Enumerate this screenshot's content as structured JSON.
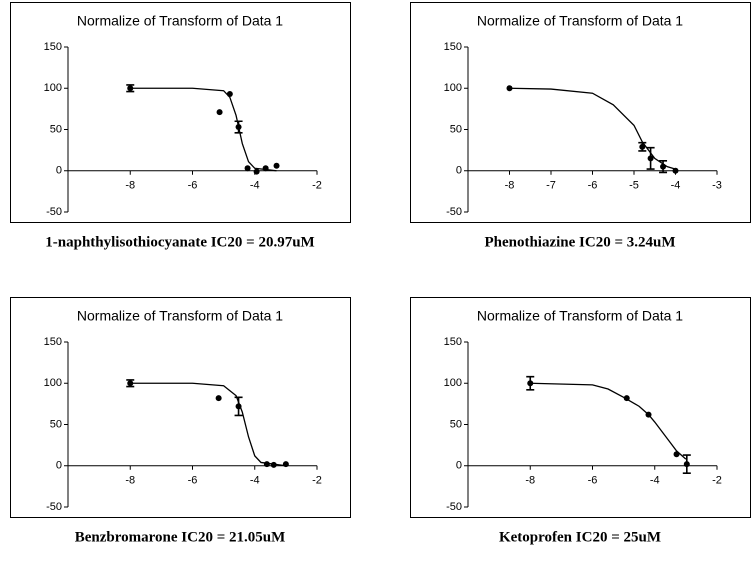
{
  "chart_data": [
    {
      "type": "scatter",
      "title": "Normalize of Transform of Data 1",
      "caption": "1-naphthylisothiocyanate IC20 = 20.97uM",
      "xlim": [
        -10,
        -2
      ],
      "xticks": [
        -8,
        -6,
        -4,
        -2
      ],
      "ylim": [
        -50,
        150
      ],
      "yticks": [
        -50,
        0,
        50,
        100,
        150
      ],
      "color": "#000000",
      "points": {
        "x": [
          -8,
          -5.13,
          -4.8,
          -4.52,
          -4.23,
          -3.94,
          -3.65,
          -3.3
        ],
        "values": [
          100,
          71,
          93,
          53,
          3,
          -1,
          3,
          6
        ],
        "errors": [
          4,
          null,
          null,
          7,
          null,
          null,
          null,
          null
        ]
      },
      "curve": {
        "x": [
          -8,
          -6,
          -5,
          -4.8,
          -4.6,
          -4.5,
          -4.4,
          -4.2,
          -4,
          -3.3
        ],
        "values": [
          100,
          100,
          97,
          89,
          67,
          50,
          33,
          11,
          3,
          0
        ]
      }
    },
    {
      "type": "scatter",
      "title": "Normalize of Transform of Data 1",
      "caption": "Phenothiazine IC20 = 3.24uM",
      "xlim": [
        -9,
        -3
      ],
      "xticks": [
        -8,
        -7,
        -6,
        -5,
        -4,
        -3
      ],
      "ylim": [
        -50,
        150
      ],
      "yticks": [
        -50,
        0,
        50,
        100,
        150
      ],
      "color": "#000000",
      "points": {
        "x": [
          -8,
          -4.8,
          -4.6,
          -4.3,
          -4
        ],
        "values": [
          100,
          29,
          15,
          5,
          0
        ],
        "errors": [
          null,
          5,
          13,
          7,
          null
        ]
      },
      "curve": {
        "x": [
          -8,
          -7,
          -6,
          -5.5,
          -5,
          -4.8,
          -4.5,
          -4.2,
          -4
        ],
        "values": [
          100,
          99,
          94,
          80,
          55,
          35,
          15,
          5,
          2
        ]
      }
    },
    {
      "type": "scatter",
      "title": "Normalize of Transform of Data 1",
      "caption": "Benzbromarone IC20 = 21.05uM",
      "xlim": [
        -10,
        -2
      ],
      "xticks": [
        -8,
        -6,
        -4,
        -2
      ],
      "ylim": [
        -50,
        150
      ],
      "yticks": [
        -50,
        0,
        50,
        100,
        150
      ],
      "color": "#000000",
      "points": {
        "x": [
          -8,
          -5.16,
          -4.52,
          -3.61,
          -3.39,
          -3.0
        ],
        "values": [
          100,
          82,
          72,
          2,
          1,
          2
        ],
        "errors": [
          4,
          null,
          11,
          null,
          null,
          null
        ]
      },
      "curve": {
        "x": [
          -8,
          -6,
          -5,
          -4.6,
          -4.4,
          -4.2,
          -4,
          -3.8,
          -3
        ],
        "values": [
          100,
          100,
          97,
          85,
          65,
          35,
          12,
          4,
          0
        ]
      }
    },
    {
      "type": "scatter",
      "title": "Normalize of Transform of Data 1",
      "caption": "Ketoprofen IC20 = 25uM",
      "xlim": [
        -10,
        -2
      ],
      "xticks": [
        -8,
        -6,
        -4,
        -2
      ],
      "ylim": [
        -50,
        150
      ],
      "yticks": [
        -50,
        0,
        50,
        100,
        150
      ],
      "color": "#000000",
      "points": {
        "x": [
          -8,
          -4.9,
          -4.2,
          -3.3,
          -2.97
        ],
        "values": [
          100,
          82,
          62,
          14,
          2
        ],
        "errors": [
          8,
          null,
          null,
          null,
          11
        ]
      },
      "curve": {
        "x": [
          -8,
          -6,
          -5.5,
          -5,
          -4.5,
          -4.2,
          -4,
          -3.5,
          -3.3,
          -3
        ],
        "values": [
          100,
          98,
          93,
          83,
          72,
          62,
          53,
          28,
          18,
          8
        ]
      }
    }
  ]
}
